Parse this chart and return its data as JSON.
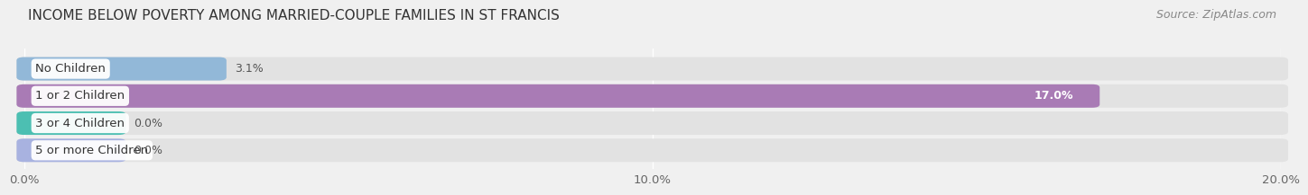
{
  "title": "INCOME BELOW POVERTY AMONG MARRIED-COUPLE FAMILIES IN ST FRANCIS",
  "source": "Source: ZipAtlas.com",
  "categories": [
    "No Children",
    "1 or 2 Children",
    "3 or 4 Children",
    "5 or more Children"
  ],
  "values": [
    3.1,
    17.0,
    0.0,
    0.0
  ],
  "bar_colors": [
    "#92b8d8",
    "#a97bb5",
    "#4cbfb2",
    "#a8b2e0"
  ],
  "value_label_inside": [
    false,
    true,
    false,
    false
  ],
  "xlim": [
    0,
    20.0
  ],
  "xticks": [
    0.0,
    10.0,
    20.0
  ],
  "xtick_labels": [
    "0.0%",
    "10.0%",
    "20.0%"
  ],
  "background_color": "#f0f0f0",
  "bar_bg_color": "#e2e2e2",
  "title_fontsize": 11,
  "source_fontsize": 9,
  "label_fontsize": 9.5,
  "value_fontsize": 9,
  "zero_stub_pct": 1.5
}
